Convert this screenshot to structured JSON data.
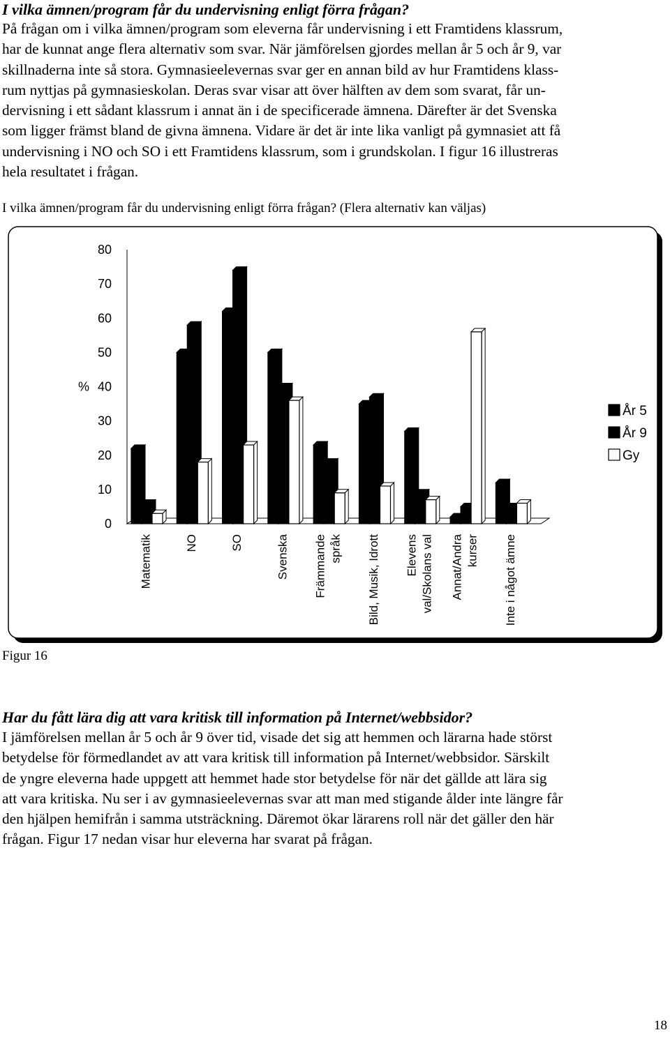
{
  "section1": {
    "heading": "I vilka ämnen/program får du undervisning enligt förra frågan?",
    "lines": [
      "På frågan om i vilka ämnen/program som eleverna får undervisning i ett Framtidens klassrum,",
      "har de kunnat ange flera alternativ som svar. När jämförelsen gjordes mellan år 5 och år 9, var",
      "skillnaderna inte så stora. Gymnasieelevernas svar ger en annan bild av hur Framtidens klass-",
      "rum nyttjas på gymnasieskolan. Deras svar visar att över hälften av dem som svarat, får un-",
      "dervisning i ett sådant klassrum i annat än i de specificerade ämnena. Därefter är det Svenska",
      "som ligger främst bland de givna ämnena. Vidare är det är inte lika vanligt på gymnasiet att få",
      "undervisning i NO och SO i ett Framtidens klassrum, som i grundskolan. I figur 16 illustreras",
      "hela resultatet i frågan."
    ]
  },
  "chart_question": "I vilka ämnen/program får du undervisning enligt förra frågan? (Flera alternativ kan väljas)",
  "chart_data": {
    "type": "bar",
    "title": "",
    "ylabel": "%",
    "xlabel": "",
    "ylim": [
      0,
      80
    ],
    "yticks": [
      "0",
      "10",
      "20",
      "30",
      "40",
      "50",
      "60",
      "70",
      "80"
    ],
    "grid": false,
    "legend_position": "right",
    "categories": [
      [
        "Matematik"
      ],
      [
        "NO"
      ],
      [
        "SO"
      ],
      [
        "Svenska"
      ],
      [
        "Främmande",
        "språk"
      ],
      [
        "Bild, Musik, Idrott"
      ],
      [
        "Elevens",
        "val/Skolans val"
      ],
      [
        "Annat/Andra",
        "kurser"
      ],
      [
        "Inte i något ämne"
      ]
    ],
    "series": [
      {
        "name": "År 5",
        "fill": "#000000",
        "values": [
          22,
          50,
          62,
          50,
          23,
          35,
          27,
          2,
          12
        ]
      },
      {
        "name": "År 9",
        "fill": "#000000",
        "values": [
          6,
          58,
          74,
          40,
          18,
          37,
          9,
          5,
          5
        ]
      },
      {
        "name": "Gy",
        "fill": "#ffffff",
        "values": [
          3,
          18,
          23,
          36,
          9,
          11,
          7,
          56,
          6
        ]
      }
    ]
  },
  "figure_label": "Figur 16",
  "section2": {
    "heading": "Har du fått lära dig att vara kritisk till information på Internet/webbsidor?",
    "lines": [
      "I jämförelsen mellan år 5 och år 9 över tid, visade det sig att hemmen och lärarna hade störst",
      "betydelse för förmedlandet av att vara kritisk till information på Internet/webbsidor. Särskilt",
      "de yngre eleverna hade uppgett att hemmet hade stor betydelse för när det gällde att lära sig",
      "att vara kritiska. Nu ser i av gymnasieelevernas svar att man med stigande ålder inte längre får",
      "den hjälpen hemifrån i samma utsträckning. Däremot ökar lärarens roll när det gäller den här",
      "frågan. Figur 17 nedan visar hur eleverna har svarat på frågan."
    ]
  },
  "page_number": "18"
}
